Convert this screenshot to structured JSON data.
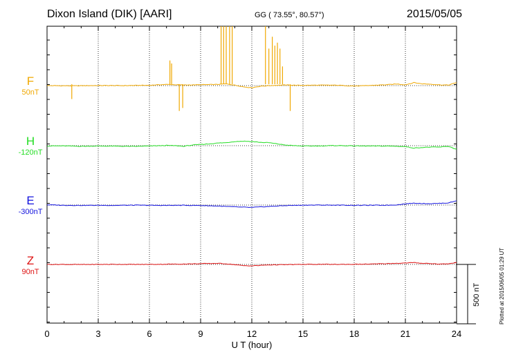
{
  "header": {
    "title": "Dixon Island (DIK)  [AARI]",
    "coords": "GG ( 73.55°,  80.57°)",
    "date": "2015/05/05"
  },
  "footer": {
    "plotted": "Plotted at 2015/06/05 01:29 UT"
  },
  "chart_data": {
    "type": "line",
    "title": "Dixon Island (DIK)  [AARI]",
    "xlabel": "U T (hour)",
    "xlim": [
      0,
      24
    ],
    "xticks": [
      0,
      3,
      6,
      9,
      12,
      15,
      18,
      21,
      24
    ],
    "xtick_labels": [
      "0",
      "3",
      "6",
      "9",
      "12",
      "15",
      "18",
      "21",
      "24"
    ],
    "scale_bar_label": "500 nT",
    "scale_bar_nT": 500,
    "grid": true,
    "series": [
      {
        "name": "F",
        "offset_label": "50nT",
        "color": "#f0a800",
        "x": [
          0,
          1.5,
          3,
          4.5,
          6,
          7,
          8,
          9,
          10,
          10.5,
          11,
          11.5,
          12,
          12.5,
          13,
          13.5,
          14,
          15,
          16,
          17,
          18,
          18.5,
          19,
          20,
          20.5,
          21,
          21.5,
          22,
          22.5,
          23,
          23.5,
          24
        ],
        "y": [
          0,
          -2,
          1,
          0,
          3,
          10,
          5,
          7,
          10,
          15,
          4,
          -10,
          -18,
          -5,
          0,
          3,
          5,
          2,
          4,
          3,
          -3,
          -2,
          2,
          8,
          14,
          7,
          25,
          15,
          12,
          7,
          4,
          25
        ],
        "spikes": [
          {
            "x": 1.45,
            "dy": -25
          },
          {
            "x": 7.2,
            "dy": 40
          },
          {
            "x": 7.3,
            "dy": 35
          },
          {
            "x": 7.75,
            "dy": -45
          },
          {
            "x": 7.95,
            "dy": -40
          },
          {
            "x": 10.2,
            "dy": 110
          },
          {
            "x": 10.35,
            "dy": 120
          },
          {
            "x": 10.5,
            "dy": 120
          },
          {
            "x": 10.7,
            "dy": 120
          },
          {
            "x": 10.85,
            "dy": 118
          },
          {
            "x": 12.8,
            "dy": 115
          },
          {
            "x": 13.0,
            "dy": 60
          },
          {
            "x": 13.2,
            "dy": 80
          },
          {
            "x": 13.35,
            "dy": 65
          },
          {
            "x": 13.5,
            "dy": 70
          },
          {
            "x": 13.65,
            "dy": 60
          },
          {
            "x": 13.8,
            "dy": 30
          },
          {
            "x": 14.25,
            "dy": -45
          }
        ]
      },
      {
        "name": "H",
        "offset_label": "-120nT",
        "color": "#22dd22",
        "x": [
          0,
          1,
          2,
          3,
          4,
          5,
          6,
          7,
          7.5,
          8,
          8.5,
          9,
          9.5,
          10,
          10.5,
          11,
          11.5,
          12,
          12.5,
          13,
          13.5,
          14,
          14.5,
          15,
          16,
          17,
          18,
          19,
          20,
          20.5,
          21,
          21.5,
          22,
          22.5,
          23,
          23.5,
          24
        ],
        "y": [
          -2,
          -2,
          -5,
          -3,
          -4,
          -6,
          -3,
          2,
          0,
          -5,
          5,
          10,
          15,
          22,
          25,
          35,
          38,
          35,
          28,
          25,
          15,
          5,
          0,
          -3,
          -2,
          1,
          -2,
          -3,
          -3,
          -5,
          -8,
          -20,
          -15,
          -12,
          -12,
          -5,
          -30
        ]
      },
      {
        "name": "E",
        "offset_label": "-300nT",
        "color": "#1010dd",
        "x": [
          0,
          1,
          2,
          3,
          4,
          5,
          6,
          7,
          8,
          9,
          10,
          10.5,
          11,
          11.5,
          12,
          12.5,
          13,
          13.5,
          14,
          15,
          16,
          17,
          18,
          19,
          20,
          20.5,
          21,
          21.5,
          22,
          22.5,
          23,
          23.5,
          24
        ],
        "y": [
          2,
          -2,
          -3,
          -2,
          -3,
          -1,
          -2,
          -3,
          -2,
          -4,
          -8,
          -12,
          -15,
          -18,
          -20,
          -16,
          -12,
          -8,
          -4,
          -1,
          0,
          -1,
          -2,
          -2,
          -1,
          2,
          10,
          16,
          13,
          12,
          14,
          18,
          36
        ]
      },
      {
        "name": "Z",
        "offset_label": "90nT",
        "color": "#dd1111",
        "x": [
          0,
          1,
          2,
          3,
          4,
          5,
          6,
          7,
          8,
          9,
          10,
          10.5,
          11,
          11.5,
          12,
          12.5,
          13,
          14,
          15,
          16,
          17,
          18,
          19,
          20,
          21,
          21.5,
          22,
          22.5,
          23,
          23.5,
          24
        ],
        "y": [
          0,
          0,
          -1,
          0,
          1,
          0,
          0,
          2,
          3,
          6,
          9,
          5,
          -2,
          -10,
          -12,
          -8,
          -4,
          -2,
          0,
          1,
          0,
          1,
          3,
          7,
          12,
          15,
          10,
          7,
          3,
          5,
          15
        ]
      }
    ]
  }
}
